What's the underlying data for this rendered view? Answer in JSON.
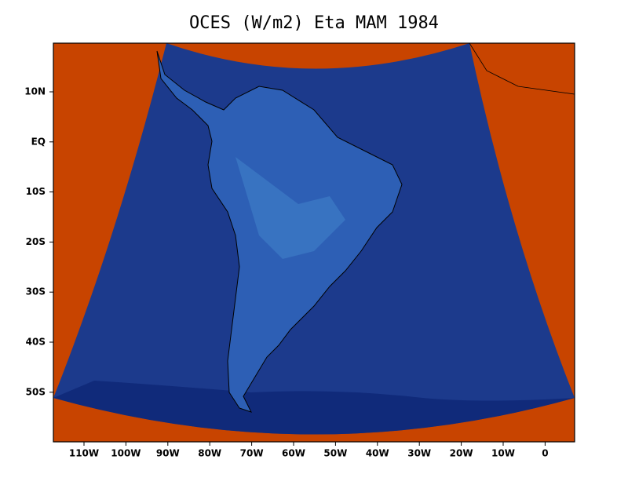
{
  "title": "OCES (W/m2) Eta MAM 1984",
  "x_axis": {
    "labels": [
      "110W",
      "100W",
      "90W",
      "80W",
      "70W",
      "60W",
      "50W",
      "40W",
      "30W",
      "20W",
      "10W",
      "0"
    ]
  },
  "y_axis": {
    "labels": [
      "10N",
      "EQ",
      "10S",
      "20S",
      "30S",
      "40S",
      "50S"
    ]
  }
}
